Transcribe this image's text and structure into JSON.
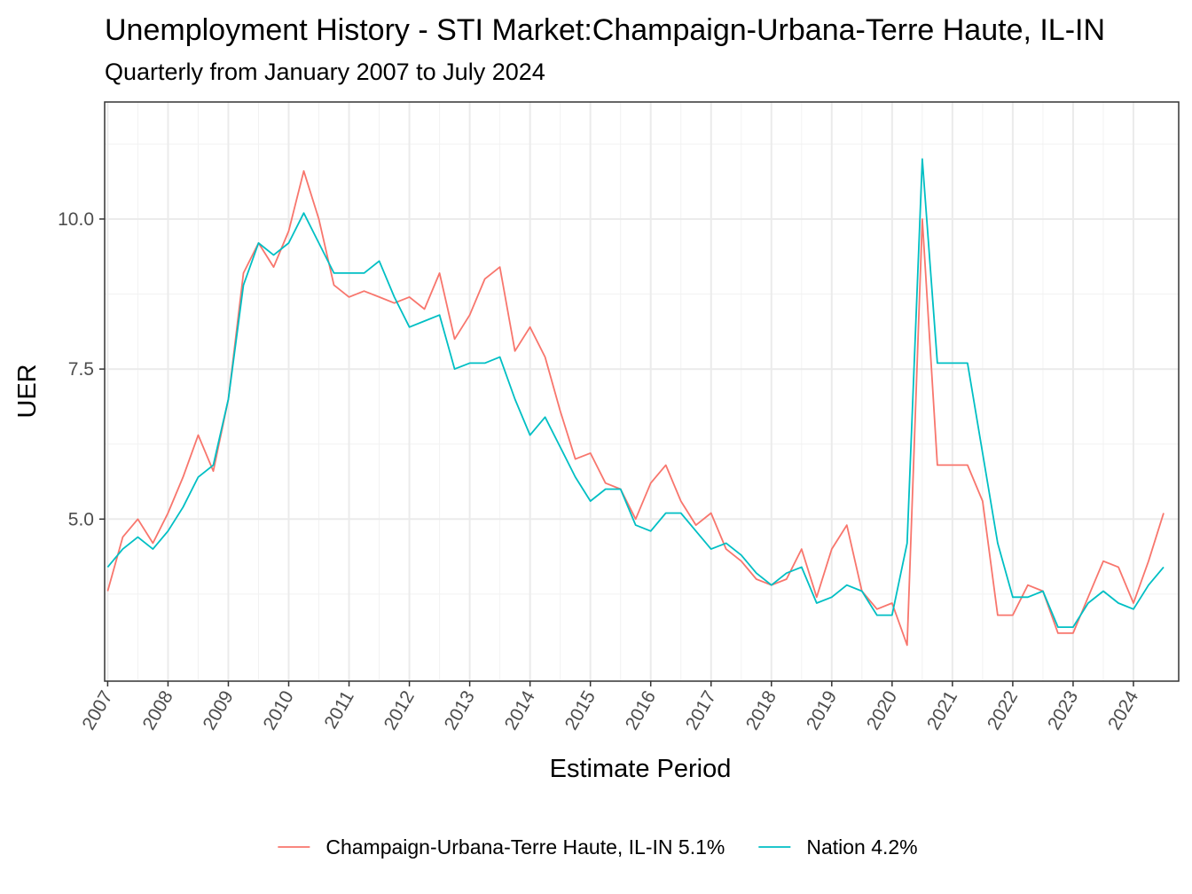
{
  "chart_data": {
    "type": "line",
    "title": "Unemployment History - STI Market:Champaign-Urbana-Terre Haute, IL-IN",
    "subtitle": "Quarterly from January 2007 to July 2024",
    "xlabel": "Estimate Period",
    "ylabel": "UER",
    "xlim": [
      2006.95,
      2024.75
    ],
    "ylim": [
      2.3,
      11.95
    ],
    "x_ticks": [
      2007,
      2008,
      2009,
      2010,
      2011,
      2012,
      2013,
      2014,
      2015,
      2016,
      2017,
      2018,
      2019,
      2020,
      2021,
      2022,
      2023,
      2024
    ],
    "x_tick_labels": [
      "2007",
      "2008",
      "2009",
      "2010",
      "2011",
      "2012",
      "2013",
      "2014",
      "2015",
      "2016",
      "2017",
      "2018",
      "2019",
      "2020",
      "2021",
      "2022",
      "2023",
      "2024"
    ],
    "y_ticks": [
      5.0,
      7.5,
      10.0
    ],
    "y_tick_labels": [
      "5.0",
      "7.5",
      "10.0"
    ],
    "grid": true,
    "legend_position": "bottom",
    "x": [
      "2007-01",
      "2007-04",
      "2007-07",
      "2007-10",
      "2008-01",
      "2008-04",
      "2008-07",
      "2008-10",
      "2009-01",
      "2009-04",
      "2009-07",
      "2009-10",
      "2010-01",
      "2010-04",
      "2010-07",
      "2010-10",
      "2011-01",
      "2011-04",
      "2011-07",
      "2011-10",
      "2012-01",
      "2012-04",
      "2012-07",
      "2012-10",
      "2013-01",
      "2013-04",
      "2013-07",
      "2013-10",
      "2014-01",
      "2014-04",
      "2014-07",
      "2014-10",
      "2015-01",
      "2015-04",
      "2015-07",
      "2015-10",
      "2016-01",
      "2016-04",
      "2016-07",
      "2016-10",
      "2017-01",
      "2017-04",
      "2017-07",
      "2017-10",
      "2018-01",
      "2018-04",
      "2018-07",
      "2018-10",
      "2019-01",
      "2019-04",
      "2019-07",
      "2019-10",
      "2020-01",
      "2020-04",
      "2020-07",
      "2020-10",
      "2021-01",
      "2021-04",
      "2021-07",
      "2021-10",
      "2022-01",
      "2022-04",
      "2022-07",
      "2022-10",
      "2023-01",
      "2023-04",
      "2023-07",
      "2023-10",
      "2024-01",
      "2024-04",
      "2024-07"
    ],
    "series": [
      {
        "name": "Champaign-Urbana-Terre Haute, IL-IN 5.1%",
        "color": "#F8766D",
        "values": [
          3.8,
          4.7,
          5.0,
          4.6,
          5.1,
          5.7,
          6.4,
          5.8,
          7.0,
          9.1,
          9.6,
          9.2,
          9.8,
          10.8,
          10.0,
          8.9,
          8.7,
          8.8,
          8.7,
          8.6,
          8.7,
          8.5,
          9.1,
          8.0,
          8.4,
          9.0,
          9.2,
          7.8,
          8.2,
          7.7,
          6.8,
          6.0,
          6.1,
          5.6,
          5.5,
          5.0,
          5.6,
          5.9,
          5.3,
          4.9,
          5.1,
          4.5,
          4.3,
          4.0,
          3.9,
          4.0,
          4.5,
          3.7,
          4.5,
          4.9,
          3.8,
          3.5,
          3.6,
          2.9,
          10.0,
          5.9,
          5.9,
          5.9,
          5.3,
          3.4,
          3.4,
          3.9,
          3.8,
          3.1,
          3.1,
          3.7,
          4.3,
          4.2,
          3.6,
          4.3,
          5.1
        ]
      },
      {
        "name": "Nation 4.2%",
        "color": "#00BFC4",
        "values": [
          4.2,
          4.5,
          4.7,
          4.5,
          4.8,
          5.2,
          5.7,
          5.9,
          7.0,
          8.9,
          9.6,
          9.4,
          9.6,
          10.1,
          9.6,
          9.1,
          9.1,
          9.1,
          9.3,
          8.7,
          8.2,
          8.3,
          8.4,
          7.5,
          7.6,
          7.6,
          7.7,
          7.0,
          6.4,
          6.7,
          6.2,
          5.7,
          5.3,
          5.5,
          5.5,
          4.9,
          4.8,
          5.1,
          5.1,
          4.8,
          4.5,
          4.6,
          4.4,
          4.1,
          3.9,
          4.1,
          4.2,
          3.6,
          3.7,
          3.9,
          3.8,
          3.4,
          3.4,
          4.6,
          11.0,
          7.6,
          7.6,
          7.6,
          6.1,
          4.6,
          3.7,
          3.7,
          3.8,
          3.2,
          3.2,
          3.6,
          3.8,
          3.6,
          3.5,
          3.9,
          4.2
        ]
      }
    ]
  }
}
